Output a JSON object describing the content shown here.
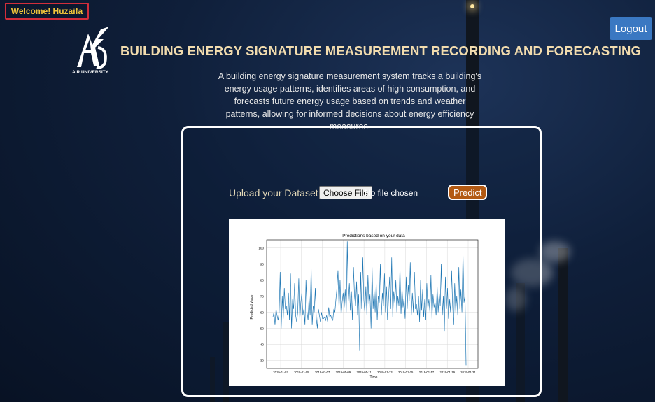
{
  "header": {
    "welcome": "Welcome! Huzaifa",
    "logout_label": "Logout",
    "logo_text": "AIR UNIVERSITY",
    "title": "BUILDING ENERGY SIGNATURE MEASUREMENT RECORDING AND FORECASTING"
  },
  "description": "A building energy signature measurement system tracks a building's energy usage patterns, identifies areas of high consumption, and forecasts future energy usage based on trends and weather patterns, allowing for informed decisions about energy efficiency measures.",
  "upload": {
    "label": "Upload your Dataset file:",
    "choose_label": "Choose File",
    "status": "No file chosen",
    "predict_label": "Predict"
  },
  "colors": {
    "accent": "#3a78c2",
    "predict": "#b35a13",
    "title": "#f2dcae",
    "series": "#1f77b4"
  },
  "chart_data": {
    "type": "line",
    "title": "Predictions based on your data",
    "xlabel": "Time",
    "ylabel": "Predicted Value",
    "ylim": [
      25,
      105
    ],
    "yticks": [
      30,
      40,
      50,
      60,
      70,
      80,
      90,
      100
    ],
    "xticks": [
      "2019-01-03",
      "2019-01-05",
      "2019-01-07",
      "2019-01-09",
      "2019-01-11",
      "2019-01-13",
      "2019-01-15",
      "2019-01-17",
      "2019-01-19",
      "2019-01-21"
    ],
    "grid": true,
    "series": [
      {
        "values": [
          57,
          60,
          52,
          62,
          58,
          55,
          60,
          85,
          50,
          70,
          56,
          75,
          62,
          64,
          58,
          72,
          55,
          84,
          50,
          68,
          62,
          78,
          58,
          54,
          60,
          81,
          55,
          66,
          72,
          58,
          62,
          52,
          80,
          60,
          55,
          70,
          58,
          88,
          52,
          64,
          60,
          75,
          56,
          50,
          62,
          58,
          54,
          60,
          56,
          56,
          57,
          55,
          58,
          54,
          63,
          57,
          58,
          56,
          55,
          62,
          60,
          68,
          75,
          86,
          62,
          80,
          58,
          66,
          72,
          63,
          74,
          60,
          104,
          67,
          78,
          61,
          73,
          55,
          88,
          70,
          64,
          79,
          58,
          71,
          36,
          85,
          62,
          94,
          68,
          60,
          76,
          58,
          83,
          65,
          71,
          50,
          88,
          62,
          74,
          60,
          79,
          55,
          70,
          66,
          90,
          58,
          72,
          64,
          84,
          60,
          76,
          55,
          69,
          82,
          62,
          94,
          57,
          73,
          66,
          80,
          60,
          70,
          64,
          88,
          59,
          75,
          63,
          69,
          56,
          82,
          62,
          77,
          67,
          91,
          58,
          72,
          60,
          85,
          62,
          65,
          58,
          70,
          54,
          80,
          61,
          74,
          57,
          68,
          55,
          78,
          62,
          68,
          60,
          83,
          56,
          71,
          63,
          66,
          58,
          76,
          60,
          72,
          64,
          90,
          58,
          70,
          48,
          82,
          62,
          75,
          56,
          68,
          60,
          86,
          64,
          52,
          78,
          60,
          70,
          58,
          88,
          62,
          74,
          60,
          97,
          66,
          70,
          27
        ]
      }
    ]
  }
}
